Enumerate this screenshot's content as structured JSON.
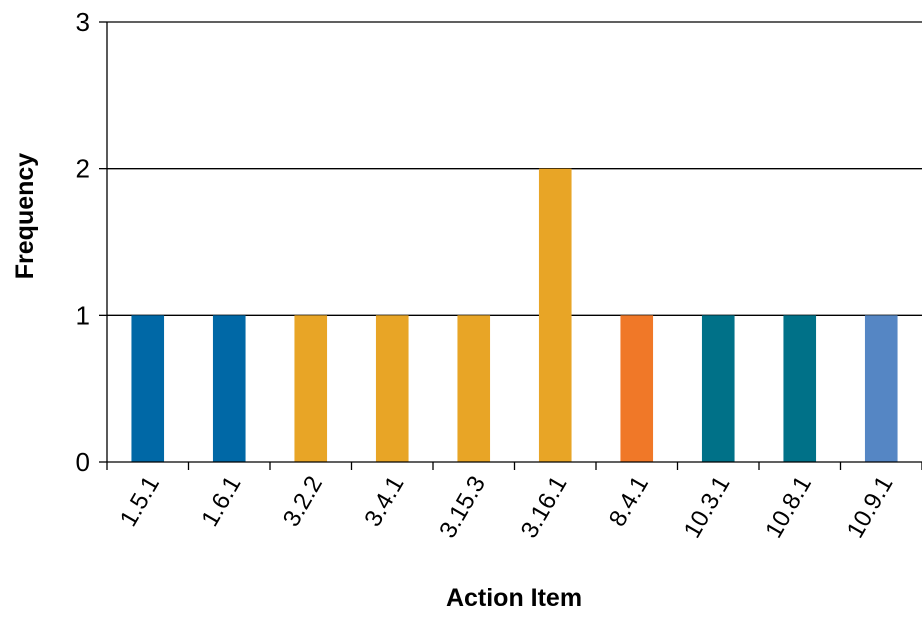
{
  "chart_data": {
    "type": "bar",
    "title": "",
    "xlabel": "Action Item",
    "ylabel": "Frequency",
    "categories": [
      "1.5.1",
      "1.6.1",
      "3.2.2",
      "3.4.1",
      "3.15.3",
      "3.16.1",
      "8.4.1",
      "10.3.1",
      "10.8.1",
      "10.9.1"
    ],
    "values": [
      1,
      1,
      1,
      1,
      1,
      2,
      1,
      1,
      1,
      1
    ],
    "colors": [
      "#0068A6",
      "#0068A6",
      "#E8A526",
      "#E8A526",
      "#E8A526",
      "#E8A526",
      "#F07828",
      "#007188",
      "#007188",
      "#5586C4"
    ],
    "ylim": [
      0,
      3
    ],
    "yticks": [
      "0",
      "1",
      "2",
      "3"
    ],
    "grid": true,
    "legend": "none"
  }
}
